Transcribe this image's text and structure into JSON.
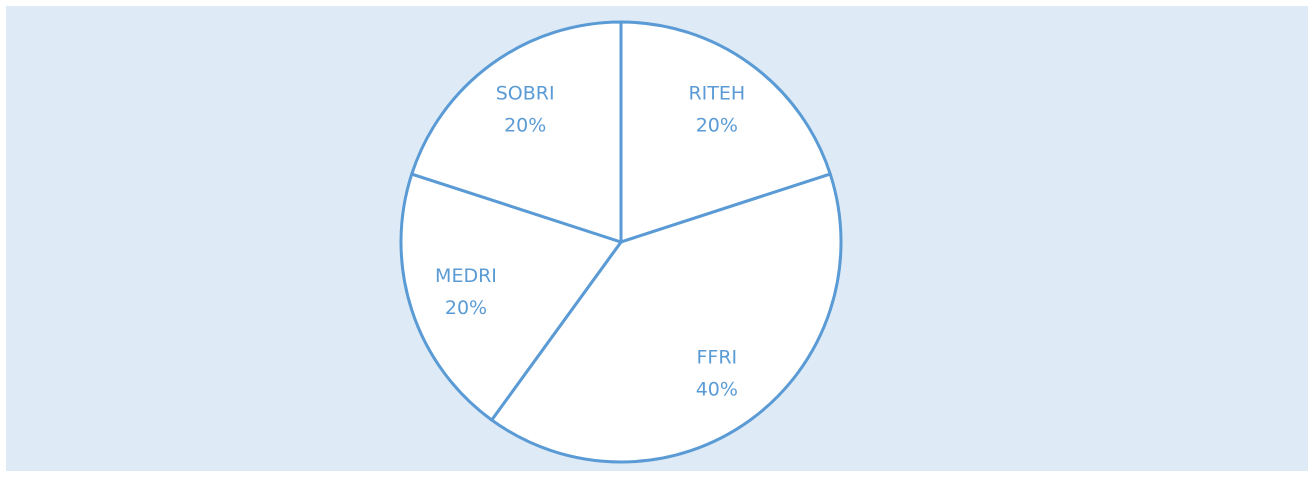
{
  "chart_data": {
    "type": "pie",
    "categories": [
      "RITEH",
      "FFRI",
      "MEDRI",
      "SOBRI"
    ],
    "values": [
      20,
      40,
      20,
      20
    ],
    "value_labels": [
      "20%",
      "40%",
      "20%",
      "20%"
    ],
    "color": "#ffffff",
    "edge_color": "#5b9bd5"
  }
}
